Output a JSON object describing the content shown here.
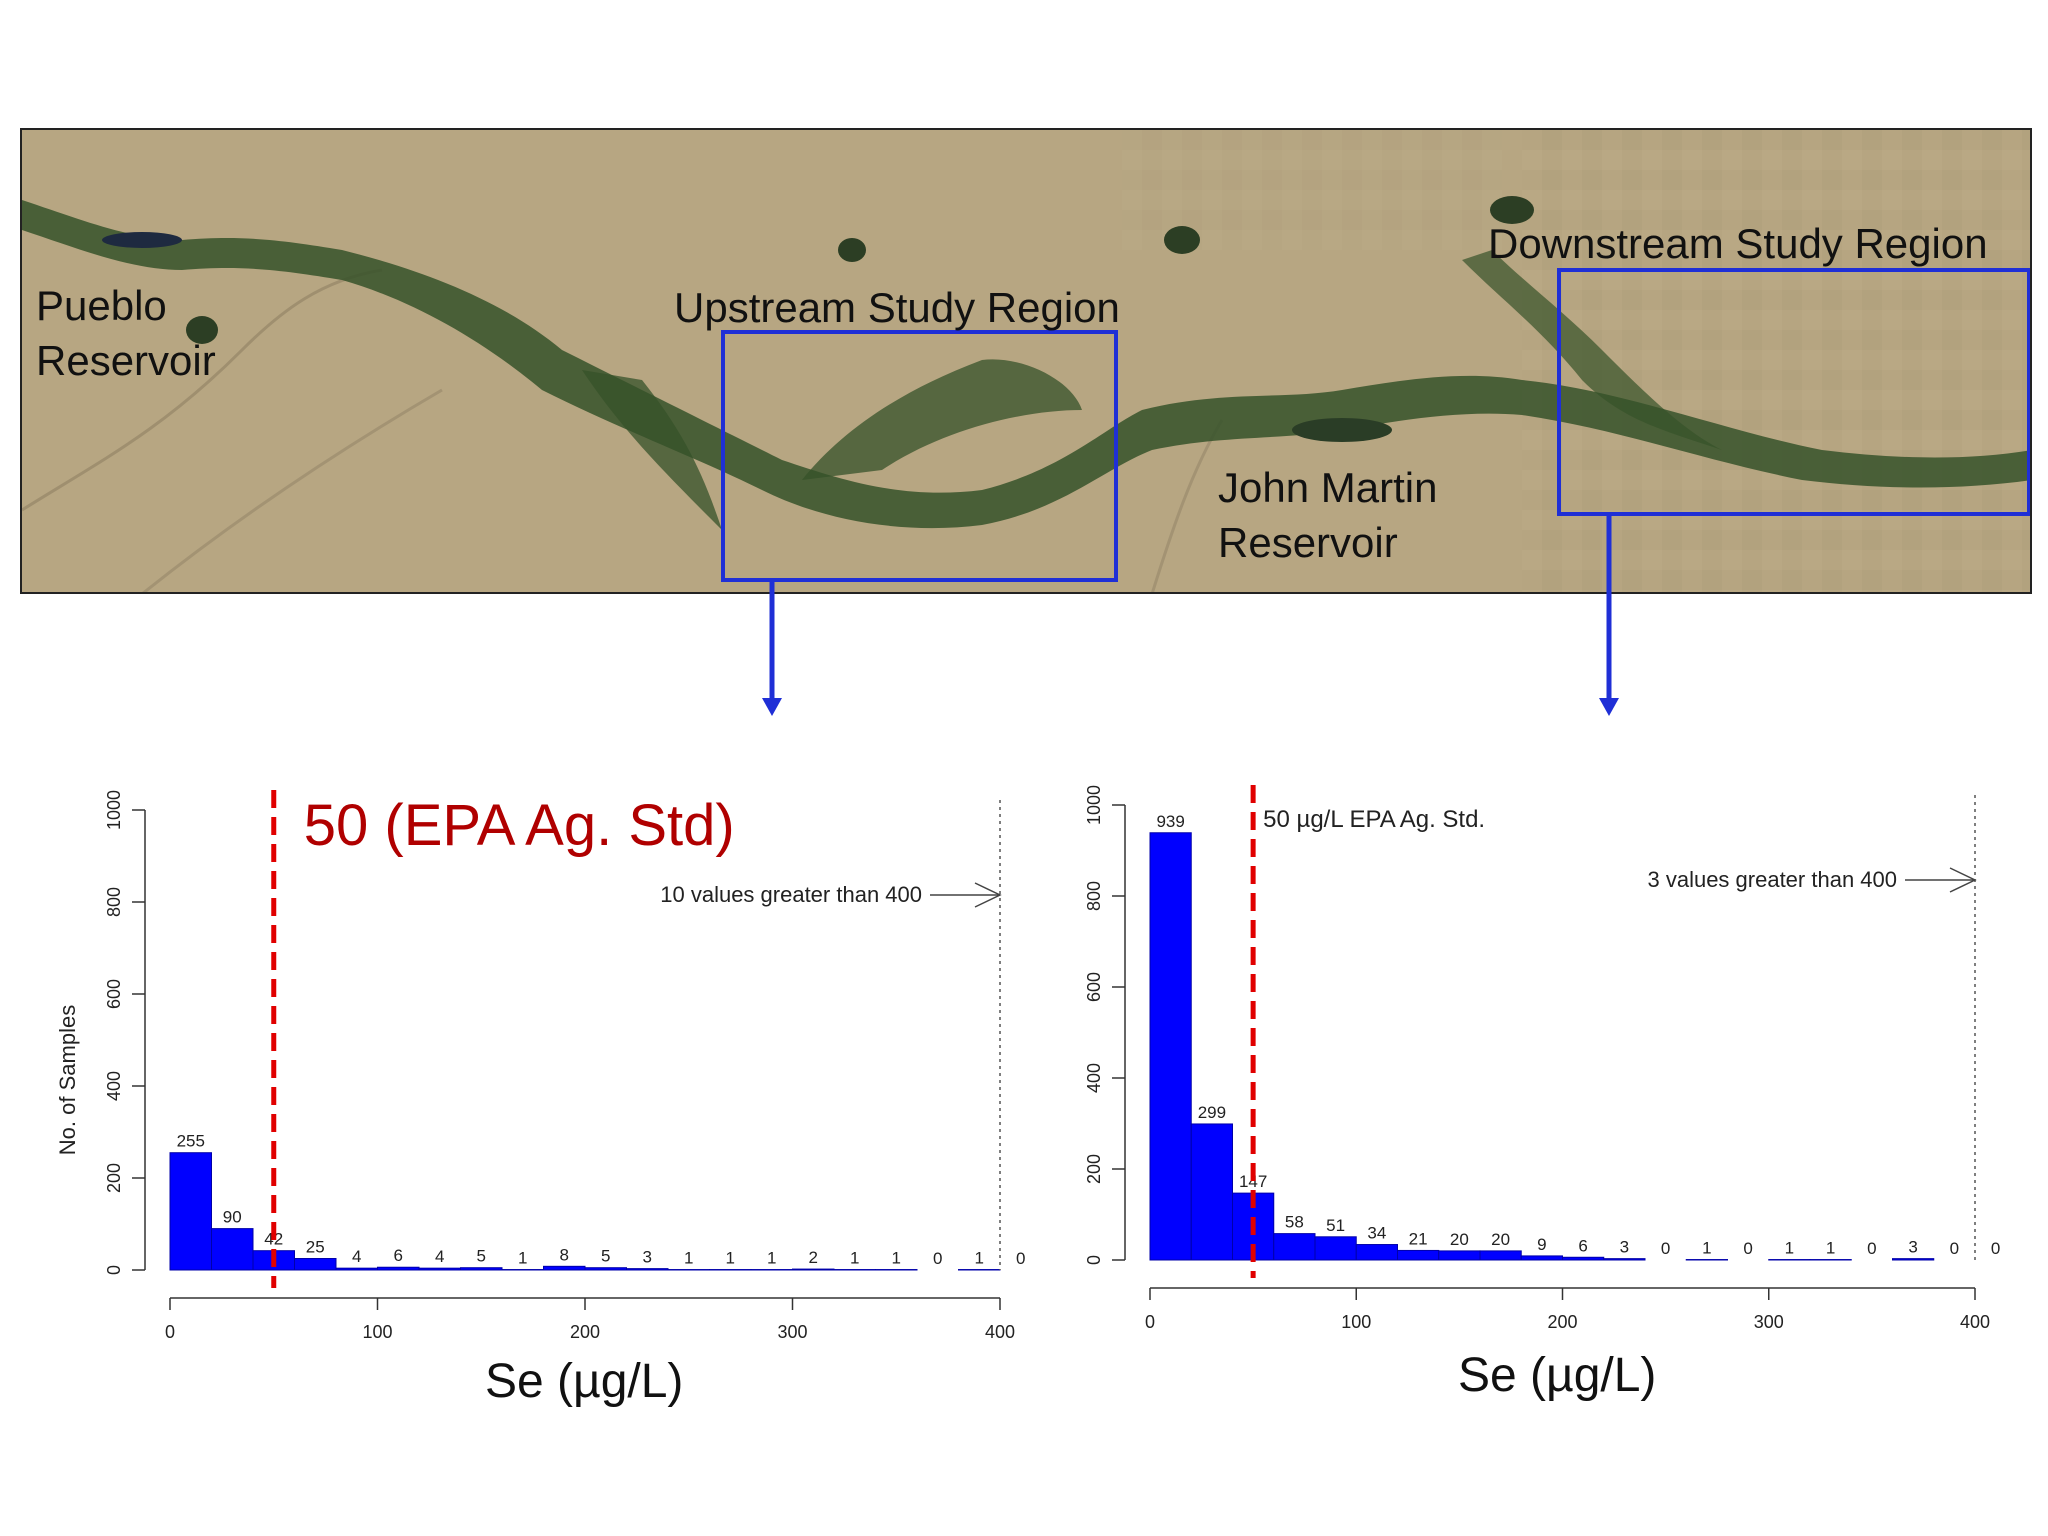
{
  "map": {
    "labels": {
      "pueblo": [
        "Pueblo",
        "Reservoir"
      ],
      "upstream": "Upstream Study Region",
      "downstream": "Downstream Study Region",
      "john_martin": [
        "John Martin",
        "Reservoir"
      ]
    },
    "colors": {
      "box": "#1f2fd6",
      "land": "#b3a27f",
      "vegetation": "#2f4a22"
    }
  },
  "chart_data": [
    {
      "type": "bar",
      "title": "",
      "xlabel": "Se (µg/L)",
      "ylabel": "No. of Samples",
      "bin_width": 20,
      "x_bins_start": [
        0,
        20,
        40,
        60,
        80,
        100,
        120,
        140,
        160,
        180,
        200,
        220,
        240,
        260,
        280,
        300,
        320,
        340,
        360,
        380,
        400
      ],
      "values": [
        255,
        90,
        42,
        25,
        4,
        6,
        4,
        5,
        1,
        8,
        5,
        3,
        1,
        1,
        1,
        2,
        1,
        1,
        0,
        1,
        0
      ],
      "xlim": [
        0,
        400
      ],
      "ylim": [
        0,
        1000
      ],
      "x_ticks": [
        0,
        100,
        200,
        300,
        400
      ],
      "y_ticks": [
        0,
        200,
        400,
        600,
        800,
        1000
      ],
      "threshold": {
        "x": 50,
        "label": "50 (EPA Ag. Std)",
        "color": "#e00000"
      },
      "overflow_note": "10 values greater than 400",
      "bar_color": "#0000ff"
    },
    {
      "type": "bar",
      "title": "",
      "xlabel": "Se (µg/L)",
      "ylabel": "",
      "bin_width": 20,
      "x_bins_start": [
        0,
        20,
        40,
        60,
        80,
        100,
        120,
        140,
        160,
        180,
        200,
        220,
        240,
        260,
        280,
        300,
        320,
        340,
        360,
        380,
        400
      ],
      "values": [
        939,
        299,
        147,
        58,
        51,
        34,
        21,
        20,
        20,
        9,
        6,
        3,
        0,
        1,
        0,
        1,
        1,
        0,
        3,
        0,
        0
      ],
      "xlim": [
        0,
        400
      ],
      "ylim": [
        0,
        1000
      ],
      "x_ticks": [
        0,
        100,
        200,
        300,
        400
      ],
      "y_ticks": [
        0,
        200,
        400,
        600,
        800,
        1000
      ],
      "threshold": {
        "x": 50,
        "label": "50 µg/L EPA Ag. Std.",
        "color": "#e00000"
      },
      "overflow_note": "3 values greater than 400",
      "bar_color": "#0000ff"
    }
  ]
}
